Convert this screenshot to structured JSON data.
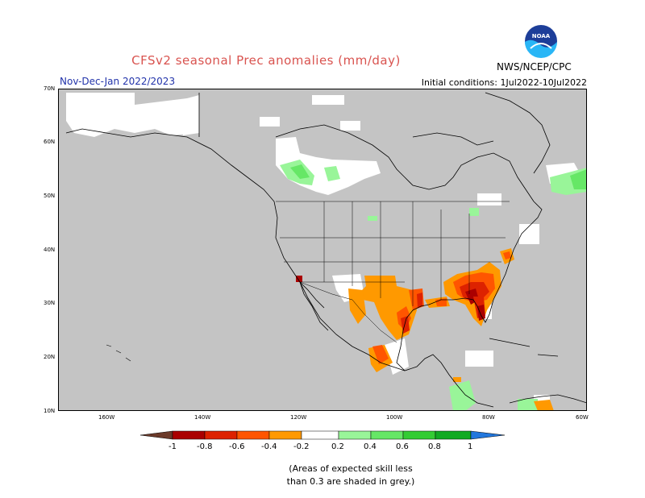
{
  "header": {
    "title": "CFSv2 seasonal Prec anomalies (mm/day)",
    "period": "Nov-Dec-Jan 2022/2023",
    "initial_conditions": "Initial conditions: 1Jul2022-10Jul2022",
    "agency": "NWS/NCEP/CPC"
  },
  "map": {
    "lat_labels": [
      "70N",
      "60N",
      "50N",
      "40N",
      "30N",
      "20N",
      "10N"
    ],
    "lon_labels": [
      "160W",
      "140W",
      "120W",
      "100W",
      "80W",
      "60W"
    ],
    "colors": {
      "land_sea_grey": "#c4c4c4",
      "no_signal": "#ffffff",
      "neg_0_2_to_0_4": "#ff9900",
      "neg_0_4_to_0_6": "#ff5500",
      "neg_0_6_to_0_8": "#dd2200",
      "neg_0_8_to_1": "#aa0000",
      "pos_0_2_to_0_4": "#99f599",
      "pos_0_4_to_0_6": "#66e766",
      "pos_0_6_to_0_8": "#33cc33",
      "pos_0_8_to_1": "#11aa22"
    }
  },
  "colorbar": {
    "labels": [
      "-1",
      "-0.8",
      "-0.6",
      "-0.4",
      "-0.2",
      "0.2",
      "0.4",
      "0.6",
      "0.8",
      "1"
    ],
    "colors": [
      "#6b3a2a",
      "#aa0000",
      "#dd2200",
      "#ff5500",
      "#ff9900",
      "#ffffff",
      "#99f599",
      "#66e766",
      "#33cc33",
      "#11aa22",
      "#2277dd"
    ]
  },
  "footnote": {
    "line1": "(Areas of expected skill less",
    "line2": "than 0.3 are shaded in grey.)"
  },
  "logo": {
    "icon": "noaa-logo-icon",
    "text": "NOAA"
  }
}
